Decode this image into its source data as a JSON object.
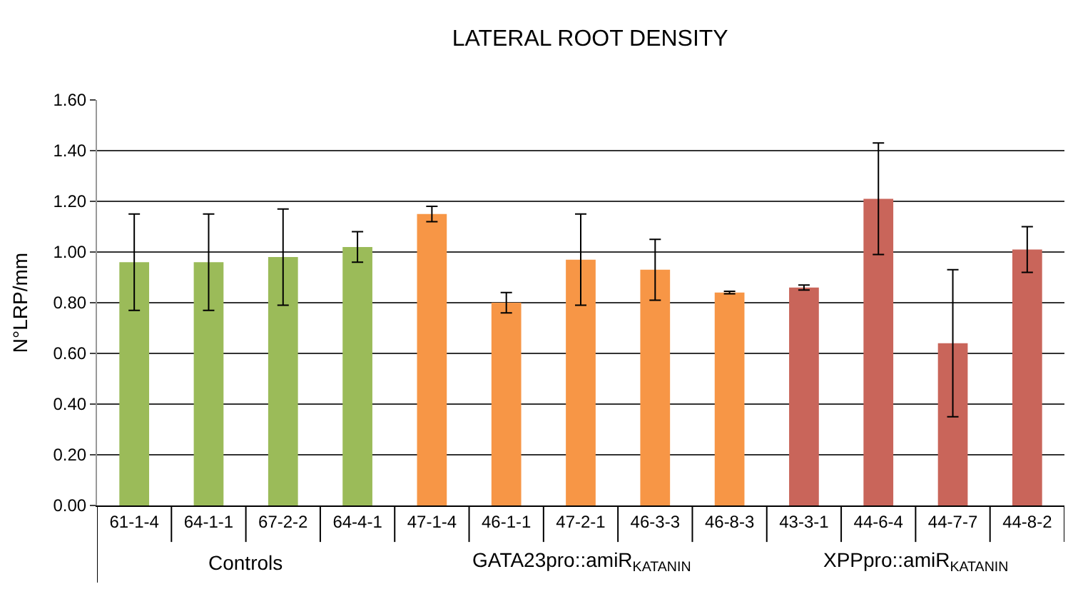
{
  "chart_data": {
    "type": "bar",
    "title": "LATERAL ROOT DENSITY",
    "ylabel": "N°LRP/mm",
    "categories": [
      "61-1-4",
      "64-1-1",
      "67-2-2",
      "64-4-1",
      "47-1-4",
      "46-1-1",
      "47-2-1",
      "46-3-3",
      "46-8-3",
      "43-3-1",
      "44-6-4",
      "44-7-7",
      "44-8-2"
    ],
    "values": [
      0.96,
      0.96,
      0.98,
      1.02,
      1.15,
      0.8,
      0.97,
      0.93,
      0.84,
      0.86,
      1.21,
      0.64,
      1.01
    ],
    "errors": [
      0.19,
      0.19,
      0.19,
      0.06,
      0.03,
      0.04,
      0.18,
      0.12,
      0.005,
      0.01,
      0.22,
      0.29,
      0.09
    ],
    "colors": [
      "#9bbb59",
      "#9bbb59",
      "#9bbb59",
      "#9bbb59",
      "#f79646",
      "#f79646",
      "#f79646",
      "#f79646",
      "#f79646",
      "#c9655a",
      "#c9655a",
      "#c9655a",
      "#c9655a"
    ],
    "ylim": [
      0,
      1.6
    ],
    "yticks": [
      {
        "value": 0,
        "label": "0.00"
      },
      {
        "value": 0.2,
        "label": "0.20"
      },
      {
        "value": 0.4,
        "label": "0.40"
      },
      {
        "value": 0.6,
        "label": "0.60"
      },
      {
        "value": 0.8,
        "label": "0.80"
      },
      {
        "value": 1.0,
        "label": "1.00"
      },
      {
        "value": 1.2,
        "label": "1.20"
      },
      {
        "value": 1.4,
        "label": "1.40"
      },
      {
        "value": 1.6,
        "label": "1.60"
      }
    ],
    "grid": "y",
    "annotations": [
      "Controls",
      "GATA23pro::amiR$_{KATANIN}$",
      "XPPpro::amiR$_{KATANIN}$"
    ]
  }
}
